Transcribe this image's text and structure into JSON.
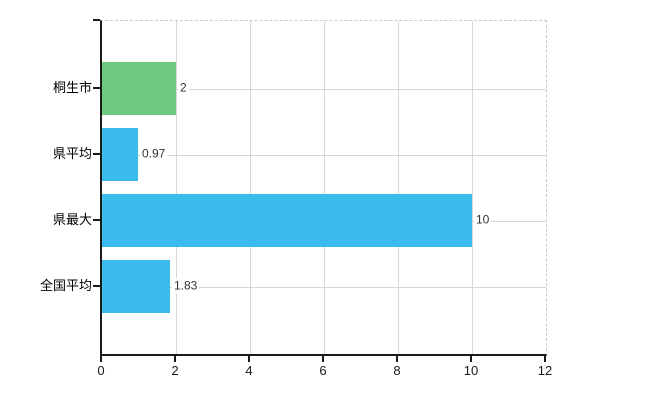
{
  "chart_data": {
    "type": "bar",
    "orientation": "horizontal",
    "title": "",
    "categories": [
      "桐生市",
      "県平均",
      "県最大",
      "全国平均"
    ],
    "series": [
      {
        "name": "values",
        "values": [
          2,
          0.97,
          10,
          1.83
        ]
      }
    ],
    "value_labels": [
      "2",
      "0.97",
      "10",
      "1.83"
    ],
    "bar_colors": [
      "#6ec97e",
      "#3bbcee",
      "#3bbcee",
      "#3bbcee"
    ],
    "xlim": [
      0,
      12
    ],
    "x_ticks": [
      0,
      2,
      4,
      6,
      8,
      10,
      12
    ],
    "xlabel": "",
    "ylabel": "",
    "grid": "vertical gridlines at even units and horizontal gridline through each category row",
    "legend_position": "none",
    "colors": {
      "green_bar": "#6ec97e",
      "blue_bar": "#3bbcee",
      "gridline": "#d7d7d7",
      "dashed_border": "#c9c9c9",
      "axis": "#1a1a1a",
      "value_label_text": "#333333",
      "tick_label_text": "#1a1a1a",
      "category_label_text": "#000000",
      "background": "#ffffff"
    }
  }
}
